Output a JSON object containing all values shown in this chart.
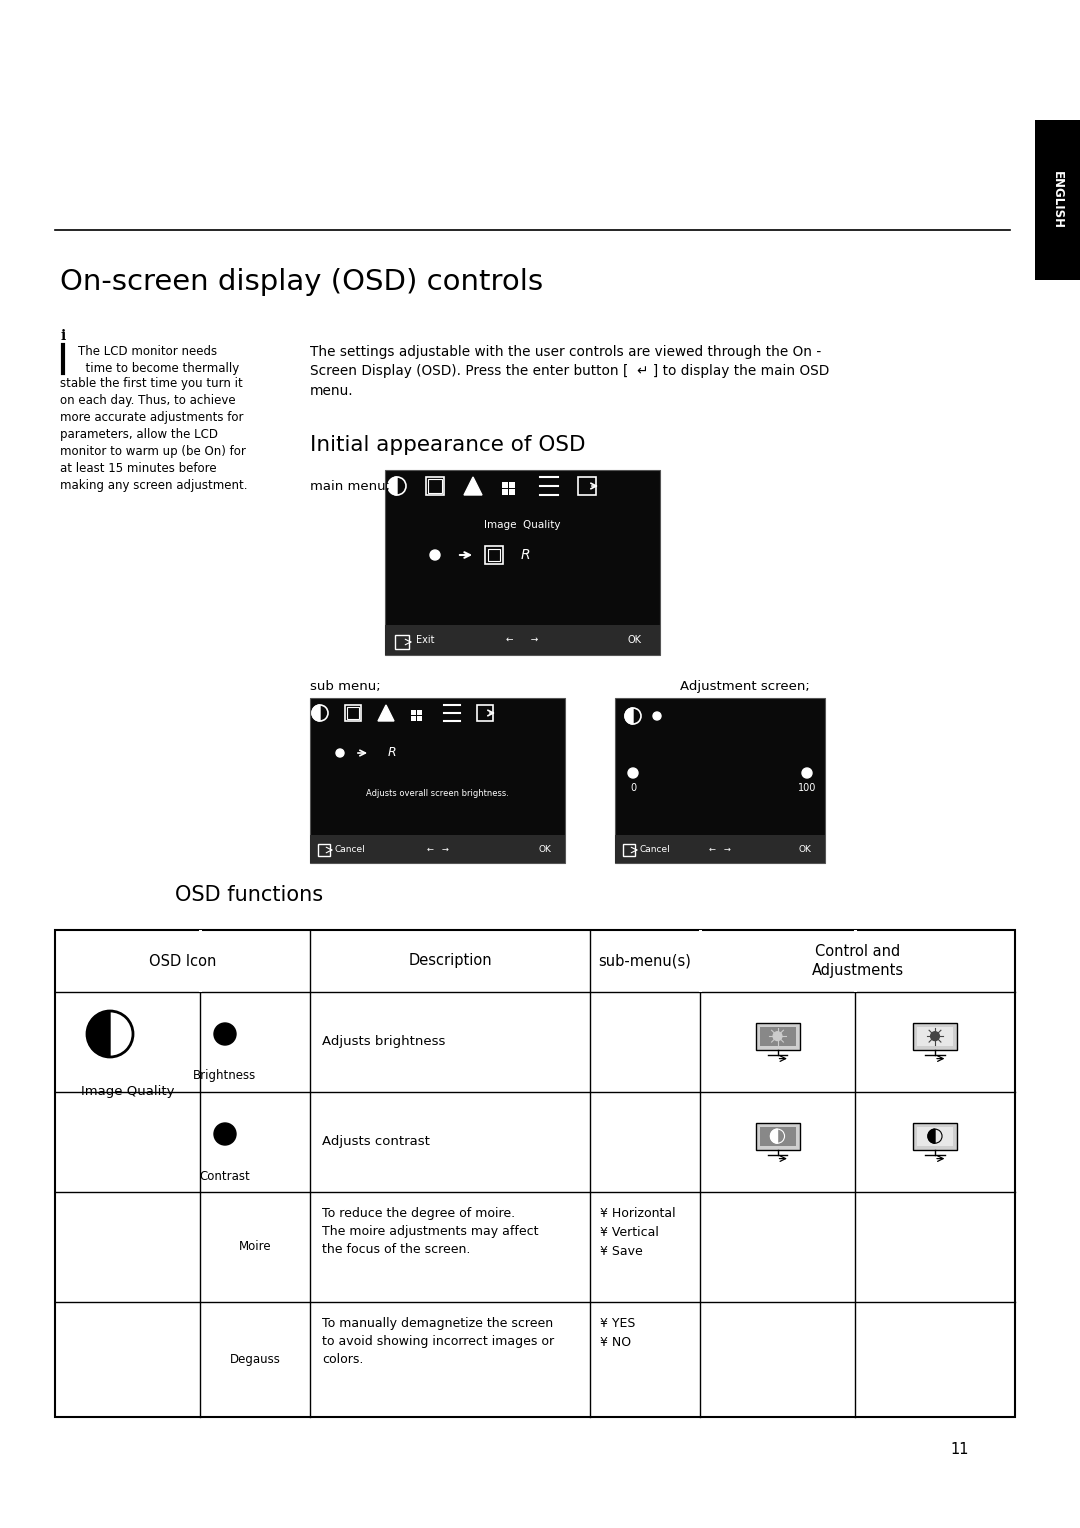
{
  "page_bg": "#ffffff",
  "title": "On-screen display (OSD) controls",
  "note_body": "The LCD monitor needs\n  time to become thermally\nstable the first time you turn it\non each day. Thus, to achieve\nmore accurate adjustments for\nparameters, allow the LCD\nmonitor to warm up (be On) for\nat least 15 minutes before\nmaking any screen adjustment.",
  "main_text": "The settings adjustable with the user controls are viewed through the On -\nScreen Display (OSD). Press the enter button [  ↵ ] to display the main OSD\nmenu.",
  "initial_heading": "Initial appearance of OSD",
  "main_menu_label": "main menu;",
  "sub_menu_label": "sub menu;",
  "adj_screen_label": "Adjustment screen;",
  "osd_functions_heading": "OSD functions",
  "table_headers": [
    "OSD Icon",
    "Description",
    "sub-menu(s)",
    "Control and\nAdjustments"
  ],
  "page_number": "11"
}
